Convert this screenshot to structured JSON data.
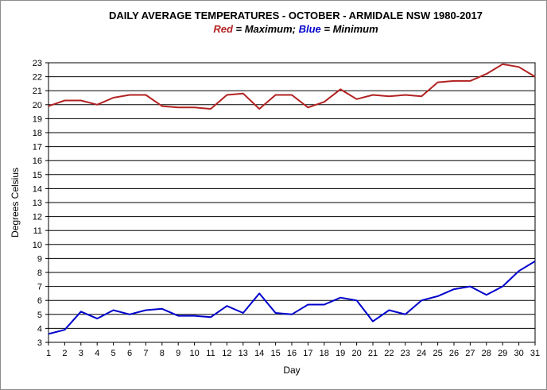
{
  "chart_data": {
    "type": "line",
    "title": "DAILY AVERAGE  TEMPERATURES   - OCTOBER  - ARMIDALE  NSW  1980-2017",
    "subtitle": {
      "red_word": "Red",
      "red_rest": " = Maximum;  ",
      "blue_word": "Blue",
      "blue_rest": " = Minimum"
    },
    "xlabel": "Day",
    "ylabel": "Degrees  Celsius",
    "xlim": [
      1,
      31
    ],
    "ylim": [
      3,
      23
    ],
    "grid": true,
    "legend": "none",
    "x": [
      1,
      2,
      3,
      4,
      5,
      6,
      7,
      8,
      9,
      10,
      11,
      12,
      13,
      14,
      15,
      16,
      17,
      18,
      19,
      20,
      21,
      22,
      23,
      24,
      25,
      26,
      27,
      28,
      29,
      30,
      31
    ],
    "series": [
      {
        "name": "Maximum",
        "color": "#b22222",
        "values": [
          19.9,
          20.3,
          20.3,
          20.0,
          20.5,
          20.7,
          20.7,
          19.9,
          19.8,
          19.8,
          19.7,
          20.7,
          20.8,
          19.7,
          20.7,
          20.7,
          19.8,
          20.2,
          21.1,
          20.4,
          20.7,
          20.6,
          20.7,
          20.6,
          21.6,
          21.7,
          21.7,
          22.2,
          22.9,
          22.7,
          22.0
        ]
      },
      {
        "name": "Minimum",
        "color": "#0000cc",
        "values": [
          3.6,
          3.9,
          5.2,
          4.7,
          5.3,
          5.0,
          5.3,
          5.4,
          4.9,
          4.9,
          4.8,
          5.6,
          5.1,
          6.5,
          5.1,
          5.0,
          5.7,
          5.7,
          6.2,
          6.0,
          4.5,
          5.3,
          5.0,
          6.0,
          6.3,
          6.8,
          7.0,
          6.4,
          7.0,
          8.1,
          8.8
        ]
      }
    ]
  },
  "colors": {
    "grid": "#000000",
    "plot_bg": "#ffffff",
    "red_text": "#b22222",
    "blue_text": "#0000cc"
  }
}
